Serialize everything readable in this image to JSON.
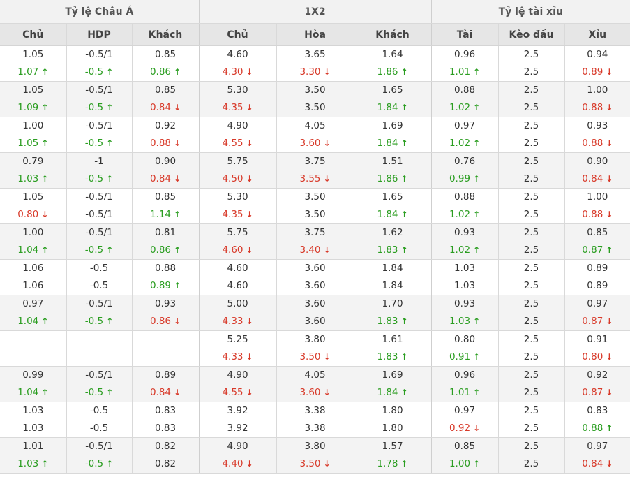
{
  "header": {
    "groups": [
      "Tỷ lệ Châu Á",
      "1X2",
      "Tỷ lệ tài xỉu"
    ],
    "columns": [
      "Chủ",
      "HDP",
      "Khách",
      "Chủ",
      "Hòa",
      "Khách",
      "Tài",
      "Kèo đầu",
      "Xỉu"
    ]
  },
  "icons": {
    "up": "arrow-up-icon",
    "down": "arrow-down-icon"
  },
  "colors": {
    "up": "#2a9d20",
    "down": "#d83a2a",
    "header_bg": "#e6e6e6",
    "group_bg": "#f2f2f2",
    "stripe_bg": "#f3f3f3"
  },
  "rows": [
    {
      "cells": [
        {
          "top": "1.05",
          "bottom": "1.07",
          "trend": "up"
        },
        {
          "top": "-0.5/1",
          "bottom": "-0.5",
          "trend": "up"
        },
        {
          "top": "0.85",
          "bottom": "0.86",
          "trend": "up"
        },
        {
          "top": "4.60",
          "bottom": "4.30",
          "trend": "down"
        },
        {
          "top": "3.65",
          "bottom": "3.30",
          "trend": "down"
        },
        {
          "top": "1.64",
          "bottom": "1.86",
          "trend": "up"
        },
        {
          "top": "0.96",
          "bottom": "1.01",
          "trend": "up"
        },
        {
          "top": "2.5",
          "bottom": "2.5",
          "trend": ""
        },
        {
          "top": "0.94",
          "bottom": "0.89",
          "trend": "down"
        }
      ]
    },
    {
      "cells": [
        {
          "top": "1.05",
          "bottom": "1.09",
          "trend": "up"
        },
        {
          "top": "-0.5/1",
          "bottom": "-0.5",
          "trend": "up"
        },
        {
          "top": "0.85",
          "bottom": "0.84",
          "trend": "down"
        },
        {
          "top": "5.30",
          "bottom": "4.35",
          "trend": "down"
        },
        {
          "top": "3.50",
          "bottom": "3.50",
          "trend": ""
        },
        {
          "top": "1.65",
          "bottom": "1.84",
          "trend": "up"
        },
        {
          "top": "0.88",
          "bottom": "1.02",
          "trend": "up"
        },
        {
          "top": "2.5",
          "bottom": "2.5",
          "trend": ""
        },
        {
          "top": "1.00",
          "bottom": "0.88",
          "trend": "down"
        }
      ]
    },
    {
      "cells": [
        {
          "top": "1.00",
          "bottom": "1.05",
          "trend": "up"
        },
        {
          "top": "-0.5/1",
          "bottom": "-0.5",
          "trend": "up"
        },
        {
          "top": "0.92",
          "bottom": "0.88",
          "trend": "down"
        },
        {
          "top": "4.90",
          "bottom": "4.55",
          "trend": "down"
        },
        {
          "top": "4.05",
          "bottom": "3.60",
          "trend": "down"
        },
        {
          "top": "1.69",
          "bottom": "1.84",
          "trend": "up"
        },
        {
          "top": "0.97",
          "bottom": "1.02",
          "trend": "up"
        },
        {
          "top": "2.5",
          "bottom": "2.5",
          "trend": ""
        },
        {
          "top": "0.93",
          "bottom": "0.88",
          "trend": "down"
        }
      ]
    },
    {
      "cells": [
        {
          "top": "0.79",
          "bottom": "1.03",
          "trend": "up"
        },
        {
          "top": "-1",
          "bottom": "-0.5",
          "trend": "up"
        },
        {
          "top": "0.90",
          "bottom": "0.84",
          "trend": "down"
        },
        {
          "top": "5.75",
          "bottom": "4.50",
          "trend": "down"
        },
        {
          "top": "3.75",
          "bottom": "3.55",
          "trend": "down"
        },
        {
          "top": "1.51",
          "bottom": "1.86",
          "trend": "up"
        },
        {
          "top": "0.76",
          "bottom": "0.99",
          "trend": "up"
        },
        {
          "top": "2.5",
          "bottom": "2.5",
          "trend": ""
        },
        {
          "top": "0.90",
          "bottom": "0.84",
          "trend": "down"
        }
      ]
    },
    {
      "cells": [
        {
          "top": "1.05",
          "bottom": "0.80",
          "trend": "down"
        },
        {
          "top": "-0.5/1",
          "bottom": "-0.5/1",
          "trend": ""
        },
        {
          "top": "0.85",
          "bottom": "1.14",
          "trend": "up"
        },
        {
          "top": "5.30",
          "bottom": "4.35",
          "trend": "down"
        },
        {
          "top": "3.50",
          "bottom": "3.50",
          "trend": ""
        },
        {
          "top": "1.65",
          "bottom": "1.84",
          "trend": "up"
        },
        {
          "top": "0.88",
          "bottom": "1.02",
          "trend": "up"
        },
        {
          "top": "2.5",
          "bottom": "2.5",
          "trend": ""
        },
        {
          "top": "1.00",
          "bottom": "0.88",
          "trend": "down"
        }
      ]
    },
    {
      "cells": [
        {
          "top": "1.00",
          "bottom": "1.04",
          "trend": "up"
        },
        {
          "top": "-0.5/1",
          "bottom": "-0.5",
          "trend": "up"
        },
        {
          "top": "0.81",
          "bottom": "0.86",
          "trend": "up"
        },
        {
          "top": "5.75",
          "bottom": "4.60",
          "trend": "down"
        },
        {
          "top": "3.75",
          "bottom": "3.40",
          "trend": "down"
        },
        {
          "top": "1.62",
          "bottom": "1.83",
          "trend": "up"
        },
        {
          "top": "0.93",
          "bottom": "1.02",
          "trend": "up"
        },
        {
          "top": "2.5",
          "bottom": "2.5",
          "trend": ""
        },
        {
          "top": "0.85",
          "bottom": "0.87",
          "trend": "up"
        }
      ]
    },
    {
      "cells": [
        {
          "top": "1.06",
          "bottom": "1.06",
          "trend": ""
        },
        {
          "top": "-0.5",
          "bottom": "-0.5",
          "trend": ""
        },
        {
          "top": "0.88",
          "bottom": "0.89",
          "trend": "up"
        },
        {
          "top": "4.60",
          "bottom": "4.60",
          "trend": ""
        },
        {
          "top": "3.60",
          "bottom": "3.60",
          "trend": ""
        },
        {
          "top": "1.84",
          "bottom": "1.84",
          "trend": ""
        },
        {
          "top": "1.03",
          "bottom": "1.03",
          "trend": ""
        },
        {
          "top": "2.5",
          "bottom": "2.5",
          "trend": ""
        },
        {
          "top": "0.89",
          "bottom": "0.89",
          "trend": ""
        }
      ]
    },
    {
      "cells": [
        {
          "top": "0.97",
          "bottom": "1.04",
          "trend": "up"
        },
        {
          "top": "-0.5/1",
          "bottom": "-0.5",
          "trend": "up"
        },
        {
          "top": "0.93",
          "bottom": "0.86",
          "trend": "down"
        },
        {
          "top": "5.00",
          "bottom": "4.33",
          "trend": "down"
        },
        {
          "top": "3.60",
          "bottom": "3.60",
          "trend": ""
        },
        {
          "top": "1.70",
          "bottom": "1.83",
          "trend": "up"
        },
        {
          "top": "0.93",
          "bottom": "1.03",
          "trend": "up"
        },
        {
          "top": "2.5",
          "bottom": "2.5",
          "trend": ""
        },
        {
          "top": "0.97",
          "bottom": "0.87",
          "trend": "down"
        }
      ]
    },
    {
      "cells": [
        {
          "top": "",
          "bottom": "",
          "trend": ""
        },
        {
          "top": "",
          "bottom": "",
          "trend": ""
        },
        {
          "top": "",
          "bottom": "",
          "trend": ""
        },
        {
          "top": "5.25",
          "bottom": "4.33",
          "trend": "down"
        },
        {
          "top": "3.80",
          "bottom": "3.50",
          "trend": "down"
        },
        {
          "top": "1.61",
          "bottom": "1.83",
          "trend": "up"
        },
        {
          "top": "0.80",
          "bottom": "0.91",
          "trend": "up"
        },
        {
          "top": "2.5",
          "bottom": "2.5",
          "trend": ""
        },
        {
          "top": "0.91",
          "bottom": "0.80",
          "trend": "down"
        }
      ]
    },
    {
      "cells": [
        {
          "top": "0.99",
          "bottom": "1.04",
          "trend": "up"
        },
        {
          "top": "-0.5/1",
          "bottom": "-0.5",
          "trend": "up"
        },
        {
          "top": "0.89",
          "bottom": "0.84",
          "trend": "down"
        },
        {
          "top": "4.90",
          "bottom": "4.55",
          "trend": "down"
        },
        {
          "top": "4.05",
          "bottom": "3.60",
          "trend": "down"
        },
        {
          "top": "1.69",
          "bottom": "1.84",
          "trend": "up"
        },
        {
          "top": "0.96",
          "bottom": "1.01",
          "trend": "up"
        },
        {
          "top": "2.5",
          "bottom": "2.5",
          "trend": ""
        },
        {
          "top": "0.92",
          "bottom": "0.87",
          "trend": "down"
        }
      ]
    },
    {
      "cells": [
        {
          "top": "1.03",
          "bottom": "1.03",
          "trend": ""
        },
        {
          "top": "-0.5",
          "bottom": "-0.5",
          "trend": ""
        },
        {
          "top": "0.83",
          "bottom": "0.83",
          "trend": ""
        },
        {
          "top": "3.92",
          "bottom": "3.92",
          "trend": ""
        },
        {
          "top": "3.38",
          "bottom": "3.38",
          "trend": ""
        },
        {
          "top": "1.80",
          "bottom": "1.80",
          "trend": ""
        },
        {
          "top": "0.97",
          "bottom": "0.92",
          "trend": "down"
        },
        {
          "top": "2.5",
          "bottom": "2.5",
          "trend": ""
        },
        {
          "top": "0.83",
          "bottom": "0.88",
          "trend": "up"
        }
      ]
    },
    {
      "cells": [
        {
          "top": "1.01",
          "bottom": "1.03",
          "trend": "up"
        },
        {
          "top": "-0.5/1",
          "bottom": "-0.5",
          "trend": "up"
        },
        {
          "top": "0.82",
          "bottom": "0.82",
          "trend": ""
        },
        {
          "top": "4.90",
          "bottom": "4.40",
          "trend": "down"
        },
        {
          "top": "3.80",
          "bottom": "3.50",
          "trend": "down"
        },
        {
          "top": "1.57",
          "bottom": "1.78",
          "trend": "up"
        },
        {
          "top": "0.85",
          "bottom": "1.00",
          "trend": "up"
        },
        {
          "top": "2.5",
          "bottom": "2.5",
          "trend": ""
        },
        {
          "top": "0.97",
          "bottom": "0.84",
          "trend": "down"
        }
      ]
    }
  ]
}
